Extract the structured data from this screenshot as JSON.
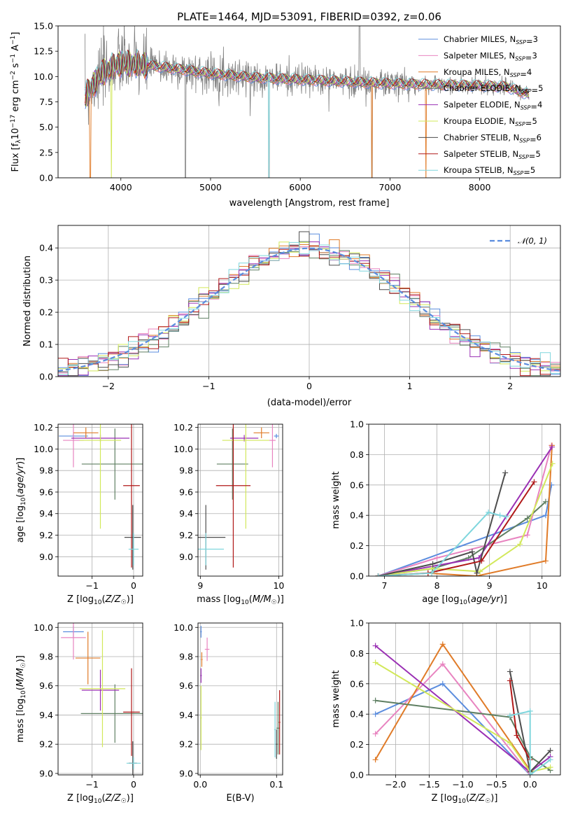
{
  "title": "PLATE=1464, MJD=53091, FIBERID=0392, z=0.06",
  "colors": {
    "data": "#808080",
    "series": [
      "#5b8dde",
      "#e884c0",
      "#e07b28",
      "#5f7f62",
      "#9a30b4",
      "#d2e85a",
      "#4d4d4d",
      "#b01818",
      "#7fd6dd"
    ]
  },
  "legend": [
    {
      "model": "Chabrier MILES",
      "nssp": "3"
    },
    {
      "model": "Salpeter MILES",
      "nssp": "3"
    },
    {
      "model": "Kroupa MILES",
      "nssp": "4"
    },
    {
      "model": "Chabrier ELODIE",
      "nssp": "5"
    },
    {
      "model": "Salpeter ELODIE",
      "nssp": "4"
    },
    {
      "model": "Kroupa ELODIE",
      "nssp": "5"
    },
    {
      "model": "Chabrier STELIB",
      "nssp": "6"
    },
    {
      "model": "Salpeter STELIB",
      "nssp": "5"
    },
    {
      "model": "Kroupa STELIB",
      "nssp": "5"
    }
  ],
  "chart_data": [
    {
      "type": "line",
      "panel": "spectrum",
      "xlabel": "wavelength [Angstrom, rest frame]",
      "ylabel": "Flux [f_λ 10^-17 erg cm^-2 s^-1 A^-1]",
      "xlim": [
        3300,
        8900
      ],
      "ylim": [
        0,
        15
      ],
      "xticks": [
        "4000",
        "5000",
        "6000",
        "7000",
        "8000"
      ],
      "yticks": [
        "0.0",
        "2.5",
        "5.0",
        "7.5",
        "10.0",
        "12.5",
        "15.0"
      ],
      "grid": false,
      "legend_position": "top-right",
      "continuum": [
        [
          3600,
          8.0
        ],
        [
          3700,
          9.3
        ],
        [
          3800,
          10.4
        ],
        [
          3900,
          10.9
        ],
        [
          4000,
          11.3
        ],
        [
          4200,
          11.2
        ],
        [
          4500,
          10.9
        ],
        [
          5000,
          10.3
        ],
        [
          5500,
          9.9
        ],
        [
          6000,
          9.7
        ],
        [
          6500,
          9.5
        ],
        [
          7000,
          9.3
        ],
        [
          7500,
          9.2
        ],
        [
          8000,
          9.1
        ],
        [
          8300,
          9.0
        ],
        [
          8550,
          8.2
        ]
      ],
      "spectrum_range": [
        3600,
        8550
      ]
    },
    {
      "type": "line",
      "panel": "residual histogram",
      "xlabel": "(data-model)/error",
      "ylabel": "Normed distribution",
      "xlim": [
        -2.5,
        2.5
      ],
      "ylim": [
        0,
        0.47
      ],
      "xticks": [
        "−2",
        "−1",
        "0",
        "1",
        "2"
      ],
      "yticks": [
        "0.0",
        "0.1",
        "0.2",
        "0.3",
        "0.4"
      ],
      "grid": true,
      "legend_position": "top-right",
      "reference": {
        "name": "𝒩(0, 1)",
        "mean": 0,
        "sigma": 1
      },
      "bin_edges_start": -2.5,
      "bin_width": 0.1,
      "bins": 50
    },
    {
      "type": "scatter",
      "panel": "age vs metallicity",
      "xlabel": "Z [log10(Z/Z☉)]",
      "ylabel": "age [log10(age/yr)]",
      "xlim": [
        -1.82,
        0.22
      ],
      "ylim": [
        8.82,
        10.23
      ],
      "xticks": [
        "−1",
        "0"
      ],
      "yticks": [
        "9.0",
        "9.2",
        "9.4",
        "9.6",
        "9.8",
        "10.0",
        "10.2"
      ],
      "grid": true,
      "points": [
        {
          "s": 0,
          "x": -1.45,
          "xerr": 0.35,
          "y": 10.12,
          "yerr": 0.02
        },
        {
          "s": 1,
          "x": -1.45,
          "xerr": 0.25,
          "y": 10.08,
          "yerr": 0.25
        },
        {
          "s": 2,
          "x": -1.15,
          "xerr": 0.3,
          "y": 10.15,
          "yerr": 0.05
        },
        {
          "s": 3,
          "x": -0.45,
          "xerr": 0.8,
          "y": 9.86,
          "yerr": 0.33
        },
        {
          "s": 4,
          "x": -0.8,
          "xerr": 0.7,
          "y": 10.1,
          "yerr": 0.03
        },
        {
          "s": 5,
          "x": -0.8,
          "xerr": 0.5,
          "y": 10.08,
          "yerr": 0.82
        },
        {
          "s": 6,
          "x": -0.02,
          "xerr": 0.2,
          "y": 9.18,
          "yerr": 0.3
        },
        {
          "s": 7,
          "x": -0.05,
          "xerr": 0.2,
          "y": 9.66,
          "yerr": 0.76
        },
        {
          "s": 8,
          "x": 0.0,
          "xerr": 0.12,
          "y": 9.07,
          "yerr": 0.15
        }
      ]
    },
    {
      "type": "scatter",
      "panel": "age vs mass",
      "xlabel": "mass [log10(M/M☉)]",
      "ylabel": "",
      "xlim": [
        8.97,
        10.05
      ],
      "ylim": [
        8.82,
        10.23
      ],
      "xticks": [
        "9",
        "10"
      ],
      "yticks": [
        "9.0",
        "9.2",
        "9.4",
        "9.6",
        "9.8",
        "10.0",
        "10.2"
      ],
      "grid": true,
      "points": [
        {
          "s": 0,
          "x": 9.97,
          "xerr": 0.03,
          "y": 10.12,
          "yerr": 0.02
        },
        {
          "s": 1,
          "x": 9.92,
          "xerr": 0.04,
          "y": 10.08,
          "yerr": 0.25
        },
        {
          "s": 2,
          "x": 9.78,
          "xerr": 0.1,
          "y": 10.15,
          "yerr": 0.05
        },
        {
          "s": 3,
          "x": 9.41,
          "xerr": 0.2,
          "y": 9.86,
          "yerr": 0.33
        },
        {
          "s": 4,
          "x": 9.56,
          "xerr": 0.18,
          "y": 10.1,
          "yerr": 0.03
        },
        {
          "s": 5,
          "x": 9.58,
          "xerr": 0.3,
          "y": 10.08,
          "yerr": 0.82
        },
        {
          "s": 6,
          "x": 9.07,
          "xerr": 0.25,
          "y": 9.18,
          "yerr": 0.3
        },
        {
          "s": 7,
          "x": 9.42,
          "xerr": 0.22,
          "y": 9.66,
          "yerr": 0.76
        },
        {
          "s": 8,
          "x": 9.07,
          "xerr": 0.23,
          "y": 9.07,
          "yerr": 0.15
        }
      ]
    },
    {
      "type": "line",
      "panel": "mass weight vs age",
      "xlabel": "age [log10(age/yr)]",
      "ylabel": "mass weight",
      "xlim": [
        6.7,
        10.35
      ],
      "ylim": [
        0,
        1
      ],
      "xticks": [
        "7",
        "8",
        "9",
        "10"
      ],
      "yticks": [
        "0.0",
        "0.2",
        "0.4",
        "0.6",
        "0.8",
        "1.0"
      ],
      "grid": true,
      "series": [
        {
          "s": 0,
          "points": [
            [
              6.88,
              0.0
            ],
            [
              10.07,
              0.4
            ],
            [
              10.18,
              0.6
            ]
          ]
        },
        {
          "s": 1,
          "points": [
            [
              6.88,
              0.0
            ],
            [
              8.0,
              0.12
            ],
            [
              9.72,
              0.27
            ],
            [
              10.18,
              0.86
            ]
          ]
        },
        {
          "s": 2,
          "points": [
            [
              6.88,
              0.0
            ],
            [
              7.83,
              0.02
            ],
            [
              8.75,
              0.0
            ],
            [
              10.07,
              0.1
            ],
            [
              10.19,
              0.86
            ]
          ]
        },
        {
          "s": 3,
          "points": [
            [
              6.88,
              0.0
            ],
            [
              7.92,
              0.05
            ],
            [
              8.6,
              0.12
            ],
            [
              9.72,
              0.38
            ],
            [
              10.07,
              0.49
            ]
          ]
        },
        {
          "s": 4,
          "points": [
            [
              6.88,
              0.0
            ],
            [
              8.8,
              0.12
            ],
            [
              10.19,
              0.85
            ]
          ]
        },
        {
          "s": 5,
          "points": [
            [
              6.88,
              0.0
            ],
            [
              7.9,
              0.05
            ],
            [
              8.82,
              0.03
            ],
            [
              9.58,
              0.21
            ],
            [
              10.2,
              0.74
            ]
          ]
        },
        {
          "s": 6,
          "points": [
            [
              6.88,
              0.0
            ],
            [
              7.92,
              0.08
            ],
            [
              8.67,
              0.16
            ],
            [
              8.76,
              0.02
            ],
            [
              9.3,
              0.68
            ]
          ]
        },
        {
          "s": 7,
          "points": [
            [
              6.88,
              0.0
            ],
            [
              7.83,
              0.02
            ],
            [
              8.85,
              0.1
            ],
            [
              9.85,
              0.62
            ]
          ]
        },
        {
          "s": 8,
          "points": [
            [
              6.88,
              0.0
            ],
            [
              7.9,
              0.02
            ],
            [
              8.98,
              0.42
            ],
            [
              9.2,
              0.4
            ],
            [
              9.32,
              0.39
            ]
          ]
        }
      ]
    },
    {
      "type": "scatter",
      "panel": "mass vs metallicity",
      "xlabel": "Z [log10(Z/Z☉)]",
      "ylabel": "mass [log10(M/M☉)]",
      "xlim": [
        -1.82,
        0.22
      ],
      "ylim": [
        8.99,
        10.03
      ],
      "xticks": [
        "−1",
        "0"
      ],
      "yticks": [
        "9.0",
        "9.2",
        "9.4",
        "9.6",
        "9.8",
        "10.0"
      ],
      "grid": true,
      "points": [
        {
          "s": 0,
          "x": -1.45,
          "xerr": 0.25,
          "y": 9.97,
          "yerr": 0.04
        },
        {
          "s": 1,
          "x": -1.45,
          "xerr": 0.3,
          "y": 9.93,
          "yerr": 0.15
        },
        {
          "s": 2,
          "x": -1.1,
          "xerr": 0.3,
          "y": 9.79,
          "yerr": 0.18
        },
        {
          "s": 3,
          "x": -0.45,
          "xerr": 0.82,
          "y": 9.41,
          "yerr": 0.2
        },
        {
          "s": 4,
          "x": -0.8,
          "xerr": 0.45,
          "y": 9.57,
          "yerr": 0.14
        },
        {
          "s": 5,
          "x": -0.75,
          "xerr": 0.55,
          "y": 9.58,
          "yerr": 0.4
        },
        {
          "s": 6,
          "x": -0.02,
          "xerr": 0.1,
          "y": 9.07,
          "yerr": 0.15
        },
        {
          "s": 7,
          "x": -0.05,
          "xerr": 0.2,
          "y": 9.42,
          "yerr": 0.3
        },
        {
          "s": 8,
          "x": 0.0,
          "xerr": 0.17,
          "y": 9.07,
          "yerr": 0.04
        }
      ]
    },
    {
      "type": "scatter",
      "panel": "mass vs extinction",
      "xlabel": "E(B-V)",
      "ylabel": "",
      "xlim": [
        -0.003,
        0.108
      ],
      "ylim": [
        8.99,
        10.03
      ],
      "xticks": [
        "0.0",
        "0.1"
      ],
      "yticks": [
        "9.0",
        "9.2",
        "9.4",
        "9.6",
        "9.8",
        "10.0"
      ],
      "grid": true,
      "points": [
        {
          "s": 0,
          "x": 0.001,
          "xerr": 0.001,
          "y": 9.97,
          "yerr": 0.04
        },
        {
          "s": 1,
          "x": 0.009,
          "xerr": 0.003,
          "y": 9.85,
          "yerr": 0.08
        },
        {
          "s": 2,
          "x": 0.002,
          "xerr": 0.001,
          "y": 9.78,
          "yerr": 0.05
        },
        {
          "s": 3,
          "x": 0.102,
          "xerr": 0.002,
          "y": 9.31,
          "yerr": 0.18
        },
        {
          "s": 4,
          "x": 0.001,
          "xerr": 0.001,
          "y": 9.67,
          "yerr": 0.05
        },
        {
          "s": 5,
          "x": 0.001,
          "xerr": 0.001,
          "y": 9.38,
          "yerr": 0.22
        },
        {
          "s": 6,
          "x": 0.1,
          "xerr": 0.001,
          "y": 9.2,
          "yerr": 0.1
        },
        {
          "s": 7,
          "x": 0.104,
          "xerr": 0.001,
          "y": 9.35,
          "yerr": 0.22
        },
        {
          "s": 8,
          "x": 0.098,
          "xerr": 0.001,
          "y": 9.3,
          "yerr": 0.19
        }
      ]
    },
    {
      "type": "line",
      "panel": "mass weight vs metallicity",
      "xlabel": "Z [log10(Z/Z☉)]",
      "ylabel": "mass weight",
      "xlim": [
        -2.4,
        0.45
      ],
      "ylim": [
        0,
        1
      ],
      "xticks": [
        "−2.0",
        "−1.5",
        "−1.0",
        "−0.5",
        "0.0"
      ],
      "yticks": [
        "0.0",
        "0.2",
        "0.4",
        "0.6",
        "0.8",
        "1.0"
      ],
      "grid": true,
      "series": [
        {
          "s": 0,
          "points": [
            [
              -2.3,
              0.4
            ],
            [
              -1.3,
              0.6
            ],
            [
              0.0,
              0.0
            ]
          ]
        },
        {
          "s": 1,
          "points": [
            [
              -2.3,
              0.27
            ],
            [
              -1.3,
              0.73
            ],
            [
              0.0,
              0.0
            ]
          ]
        },
        {
          "s": 2,
          "points": [
            [
              -2.3,
              0.1
            ],
            [
              -1.3,
              0.86
            ],
            [
              0.0,
              0.03
            ]
          ]
        },
        {
          "s": 3,
          "points": [
            [
              -2.3,
              0.49
            ],
            [
              -0.3,
              0.38
            ],
            [
              0.0,
              0.12
            ],
            [
              0.3,
              0.03
            ]
          ]
        },
        {
          "s": 4,
          "points": [
            [
              -2.3,
              0.85
            ],
            [
              0.0,
              0.02
            ],
            [
              0.3,
              0.12
            ]
          ]
        },
        {
          "s": 5,
          "points": [
            [
              -2.3,
              0.74
            ],
            [
              -0.3,
              0.21
            ],
            [
              0.0,
              0.02
            ],
            [
              0.3,
              0.05
            ]
          ]
        },
        {
          "s": 6,
          "points": [
            [
              -0.3,
              0.68
            ],
            [
              0.0,
              0.02
            ],
            [
              0.3,
              0.16
            ]
          ]
        },
        {
          "s": 7,
          "points": [
            [
              -0.3,
              0.62
            ],
            [
              -0.2,
              0.26
            ],
            [
              0.0,
              0.1
            ]
          ]
        },
        {
          "s": 8,
          "points": [
            [
              -0.3,
              0.39
            ],
            [
              0.0,
              0.42
            ],
            [
              0.0,
              0.0
            ],
            [
              0.3,
              0.1
            ]
          ]
        }
      ]
    }
  ]
}
